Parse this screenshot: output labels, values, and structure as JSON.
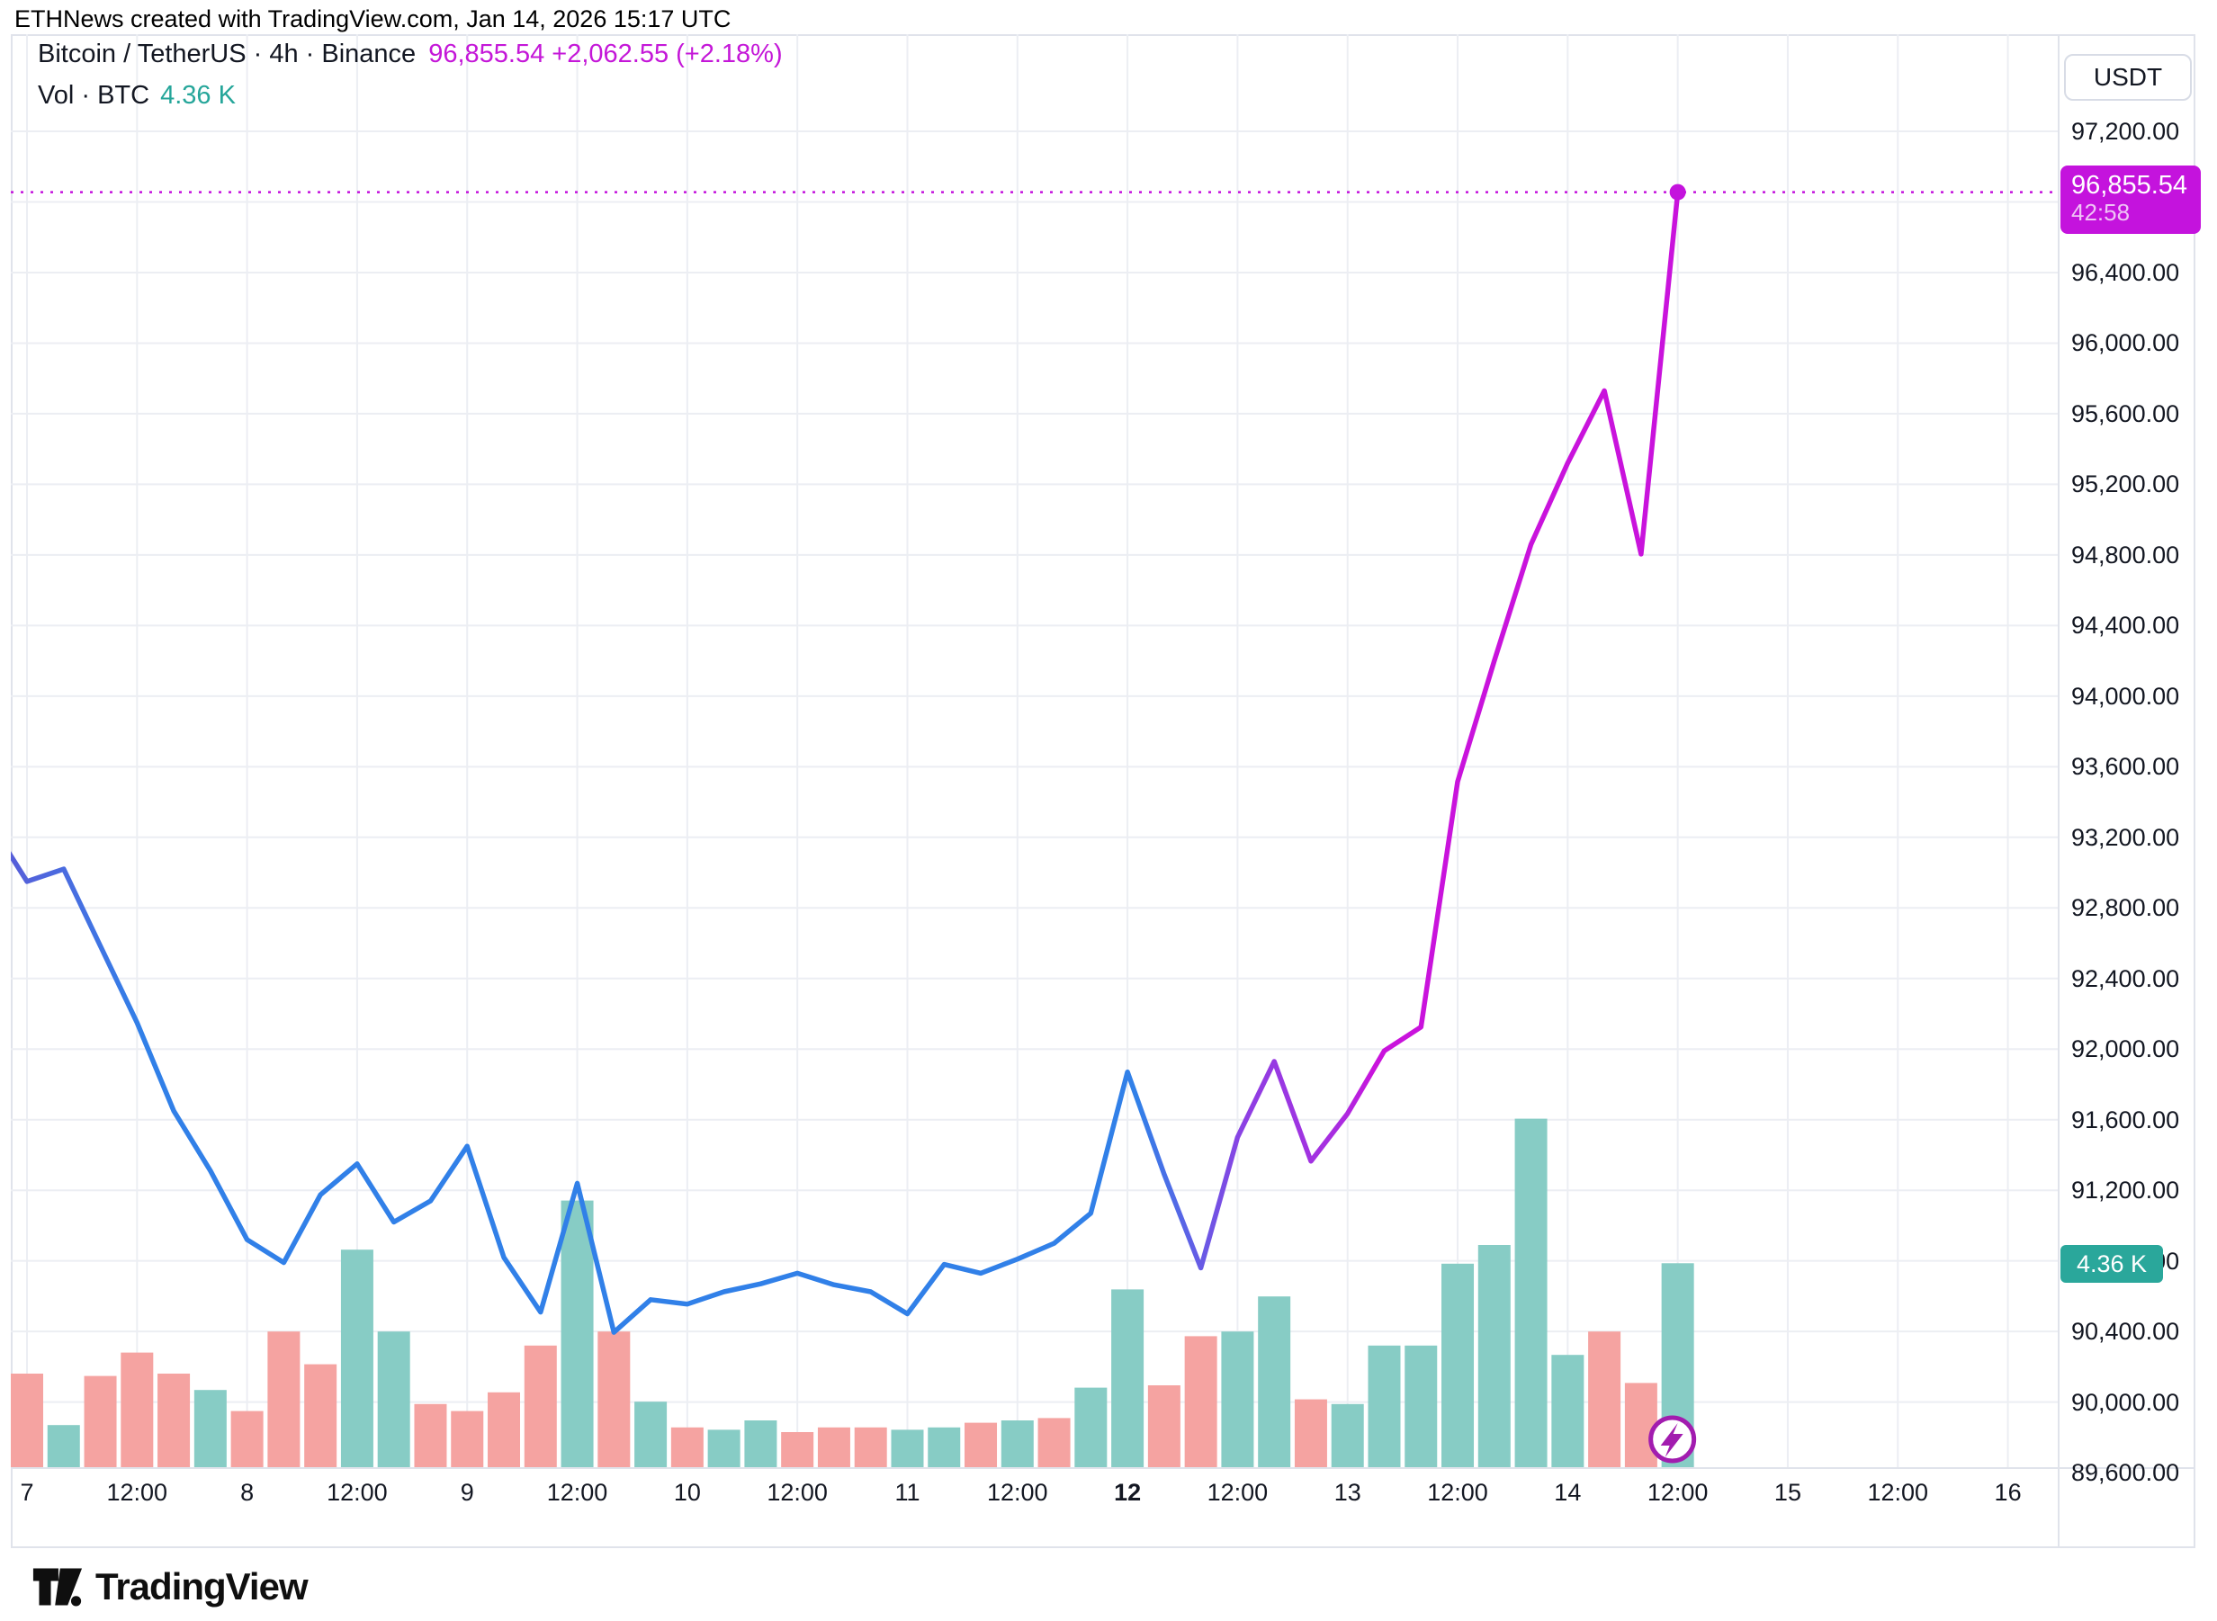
{
  "attribution": "ETHNews created with TradingView.com, Jan 14, 2026 15:17 UTC",
  "header": {
    "symbol_text": "Bitcoin / TetherUS · 4h · Binance",
    "price_text": "96,855.54  +2,062.55 (+2.18%)",
    "volume_label": "Vol · BTC",
    "volume_value": "4.36 K"
  },
  "price_axis": {
    "currency_button": "USDT",
    "ticks": [
      {
        "value": 97200,
        "label": "97,200.00"
      },
      {
        "value": 96800,
        "label": "96,800.00"
      },
      {
        "value": 96400,
        "label": "96,400.00"
      },
      {
        "value": 96000,
        "label": "96,000.00"
      },
      {
        "value": 95600,
        "label": "95,600.00"
      },
      {
        "value": 95200,
        "label": "95,200.00"
      },
      {
        "value": 94800,
        "label": "94,800.00"
      },
      {
        "value": 94400,
        "label": "94,400.00"
      },
      {
        "value": 94000,
        "label": "94,000.00"
      },
      {
        "value": 93600,
        "label": "93,600.00"
      },
      {
        "value": 93200,
        "label": "93,200.00"
      },
      {
        "value": 92800,
        "label": "92,800.00"
      },
      {
        "value": 92400,
        "label": "92,400.00"
      },
      {
        "value": 92000,
        "label": "92,000.00"
      },
      {
        "value": 91600,
        "label": "91,600.00"
      },
      {
        "value": 91200,
        "label": "91,200.00"
      },
      {
        "value": 90800,
        "label": "90,800.00"
      },
      {
        "value": 90400,
        "label": "90,400.00"
      },
      {
        "value": 90000,
        "label": "90,000.00"
      },
      {
        "value": 89600,
        "label": "89,600.00"
      }
    ]
  },
  "time_axis": {
    "ticks": [
      {
        "label": "7",
        "bar": 0,
        "bold": false
      },
      {
        "label": "12:00",
        "bar": 3,
        "bold": false
      },
      {
        "label": "8",
        "bar": 6,
        "bold": false
      },
      {
        "label": "12:00",
        "bar": 9,
        "bold": false
      },
      {
        "label": "9",
        "bar": 12,
        "bold": false
      },
      {
        "label": "12:00",
        "bar": 15,
        "bold": false
      },
      {
        "label": "10",
        "bar": 18,
        "bold": false
      },
      {
        "label": "12:00",
        "bar": 21,
        "bold": false
      },
      {
        "label": "11",
        "bar": 24,
        "bold": false
      },
      {
        "label": "12:00",
        "bar": 27,
        "bold": false
      },
      {
        "label": "12",
        "bar": 30,
        "bold": true
      },
      {
        "label": "12:00",
        "bar": 33,
        "bold": false
      },
      {
        "label": "13",
        "bar": 36,
        "bold": false
      },
      {
        "label": "12:00",
        "bar": 39,
        "bold": false
      },
      {
        "label": "14",
        "bar": 42,
        "bold": false
      },
      {
        "label": "12:00",
        "bar": 45,
        "bold": false
      },
      {
        "label": "15",
        "bar": 48,
        "bold": false
      },
      {
        "label": "12:00",
        "bar": 51,
        "bold": false
      },
      {
        "label": "16",
        "bar": 54,
        "bold": false
      }
    ]
  },
  "last_price_label": {
    "price": "96,855.54",
    "countdown": "42:58"
  },
  "last_volume_label": "4.36 K",
  "branding": {
    "name": "TradingView"
  },
  "colors": {
    "accent_magenta": "#c413dd",
    "header_magenta": "#c417d8",
    "legend_teal": "#26a69a",
    "vol_label_teal": "#2aa79b",
    "line_blue": "#3180e8",
    "line_indigo_start": "#5a58d6",
    "line_purple": "#8f3fe3",
    "line_magenta_end": "#c913dc",
    "volume_up": "#87ccc5",
    "volume_down": "#f5a3a1",
    "gridline": "#eceef3",
    "card_border": "#e0e3eb",
    "lightning_purple": "#a21caf",
    "text_dark": "#131722"
  },
  "chart_data": {
    "type": "line+volume",
    "title": "Bitcoin / TetherUS 4h (Binance)",
    "symbol": "BTCUSDT",
    "interval": "4h",
    "quote_currency": "USDT",
    "last_price": 96855.54,
    "change_abs": 2062.55,
    "change_pct": 2.18,
    "bar_countdown": "42:58",
    "last_volume_btc_k": 4.36,
    "price_axis_range": [
      89600,
      97200
    ],
    "price_axis_step": 400,
    "x_start": "Jan 6 2026 20:00 UTC",
    "x_end": "Jan 14 2026 12:00 UTC",
    "x_interval_hours": 4,
    "grid": true,
    "price_series": [
      93280,
      92950,
      93020,
      92585,
      92150,
      91650,
      91310,
      90920,
      90790,
      91175,
      91350,
      91020,
      91140,
      91450,
      90820,
      90510,
      91240,
      90395,
      90580,
      90555,
      90625,
      90670,
      90730,
      90665,
      90625,
      90500,
      90780,
      90730,
      90810,
      90900,
      91070,
      91870,
      91290,
      90760,
      91500,
      91930,
      91365,
      91635,
      91990,
      92125,
      93515,
      94200,
      94860,
      95320,
      95730,
      94805,
      96855.54
    ],
    "price_series_first_bar": "Jan 6 2026 20:00",
    "volume_series_k": [
      2.0,
      0.9,
      1.95,
      2.45,
      2.0,
      1.65,
      1.2,
      2.9,
      2.2,
      4.65,
      2.9,
      1.35,
      1.2,
      1.6,
      2.6,
      5.7,
      2.9,
      1.4,
      0.85,
      0.8,
      1.0,
      0.75,
      0.85,
      0.85,
      0.8,
      0.85,
      0.95,
      1.0,
      1.05,
      1.7,
      3.8,
      1.75,
      2.8,
      2.9,
      3.65,
      1.45,
      1.35,
      2.6,
      2.6,
      4.35,
      4.75,
      7.45,
      2.4,
      2.9,
      1.8,
      4.36
    ],
    "volume_direction": [
      "down",
      "up",
      "down",
      "down",
      "down",
      "up",
      "down",
      "down",
      "down",
      "up",
      "up",
      "down",
      "down",
      "down",
      "down",
      "up",
      "down",
      "up",
      "down",
      "up",
      "up",
      "down",
      "down",
      "down",
      "up",
      "up",
      "down",
      "up",
      "down",
      "up",
      "up",
      "down",
      "down",
      "up",
      "up",
      "down",
      "up",
      "up",
      "up",
      "up",
      "up",
      "up",
      "up",
      "down",
      "down",
      "up"
    ],
    "volume_series_first_bar": "Jan 7 2026 00:00"
  }
}
